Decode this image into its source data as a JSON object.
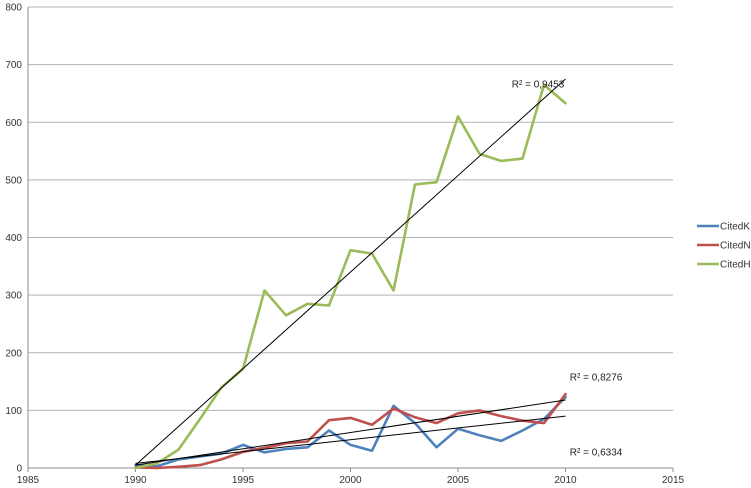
{
  "chart_data": {
    "type": "line",
    "xlim": [
      1985,
      2015
    ],
    "ylim": [
      0,
      800
    ],
    "x_ticks": [
      1985,
      1990,
      1995,
      2000,
      2005,
      2010,
      2015
    ],
    "y_ticks": [
      0,
      100,
      200,
      300,
      400,
      500,
      600,
      700,
      800
    ],
    "grid": "horizontal",
    "legend_position": "right",
    "series": [
      {
        "name": "CitedK",
        "color": "#4f81bd",
        "x": [
          1990,
          1991,
          1992,
          1993,
          1994,
          1995,
          1996,
          1997,
          1998,
          1999,
          2000,
          2001,
          2002,
          2003,
          2004,
          2005,
          2006,
          2007,
          2008,
          2009,
          2010
        ],
        "y": [
          5,
          3,
          15,
          20,
          25,
          40,
          27,
          33,
          36,
          65,
          40,
          30,
          108,
          78,
          36,
          68,
          57,
          47,
          65,
          85,
          123
        ]
      },
      {
        "name": "CitedN",
        "color": "#c0504d",
        "x": [
          1990,
          1991,
          1992,
          1993,
          1994,
          1995,
          1996,
          1997,
          1998,
          1999,
          2000,
          2001,
          2002,
          2003,
          2004,
          2005,
          2006,
          2007,
          2008,
          2009,
          2010
        ],
        "y": [
          1,
          0,
          2,
          5,
          15,
          28,
          35,
          43,
          46,
          83,
          87,
          75,
          103,
          88,
          78,
          95,
          100,
          90,
          82,
          78,
          128
        ]
      },
      {
        "name": "CitedH",
        "color": "#9bbb59",
        "x": [
          1990,
          1991,
          1992,
          1993,
          1994,
          1995,
          1996,
          1997,
          1998,
          1999,
          2000,
          2001,
          2002,
          2003,
          2004,
          2005,
          2006,
          2007,
          2008,
          2009,
          2010
        ],
        "y": [
          0,
          8,
          32,
          85,
          140,
          172,
          308,
          265,
          285,
          282,
          378,
          372,
          308,
          492,
          496,
          610,
          545,
          533,
          537,
          665,
          633
        ]
      }
    ],
    "trendlines": [
      {
        "series": "CitedH",
        "x": [
          1990,
          2010
        ],
        "y": [
          5,
          675
        ],
        "r2_label": "R² = 0,9453",
        "label_at": [
          2007.5,
          660
        ]
      },
      {
        "series": "CitedN",
        "x": [
          1990,
          2010
        ],
        "y": [
          5,
          118
        ],
        "r2_label": "R² = 0,8276",
        "label_at": [
          2010.2,
          152
        ]
      },
      {
        "series": "CitedK",
        "x": [
          1990,
          2010
        ],
        "y": [
          8,
          90
        ],
        "r2_label": "R² = 0,6334",
        "label_at": [
          2010.2,
          22
        ]
      }
    ]
  }
}
